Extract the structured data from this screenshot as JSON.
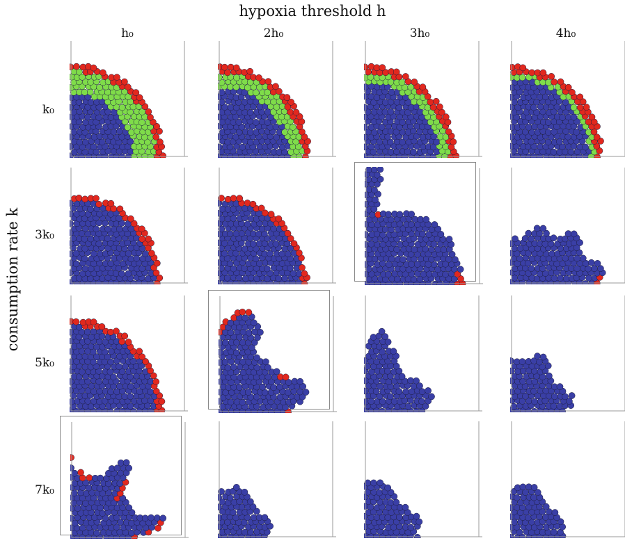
{
  "top_title": "hypoxia threshold h",
  "side_title": "consumption rate k",
  "columns": [
    "h₀",
    "2h₀",
    "3h₀",
    "4h₀"
  ],
  "rows": [
    "k₀",
    "3k₀",
    "5k₀",
    "7k₀"
  ],
  "colors": {
    "hypoxic": "#3a3fa6",
    "proliferating": "#e2281e",
    "quiescent": "#7fdc4a"
  },
  "framed_panels": [
    [
      1,
      2
    ],
    [
      2,
      1
    ],
    [
      3,
      0
    ]
  ]
}
